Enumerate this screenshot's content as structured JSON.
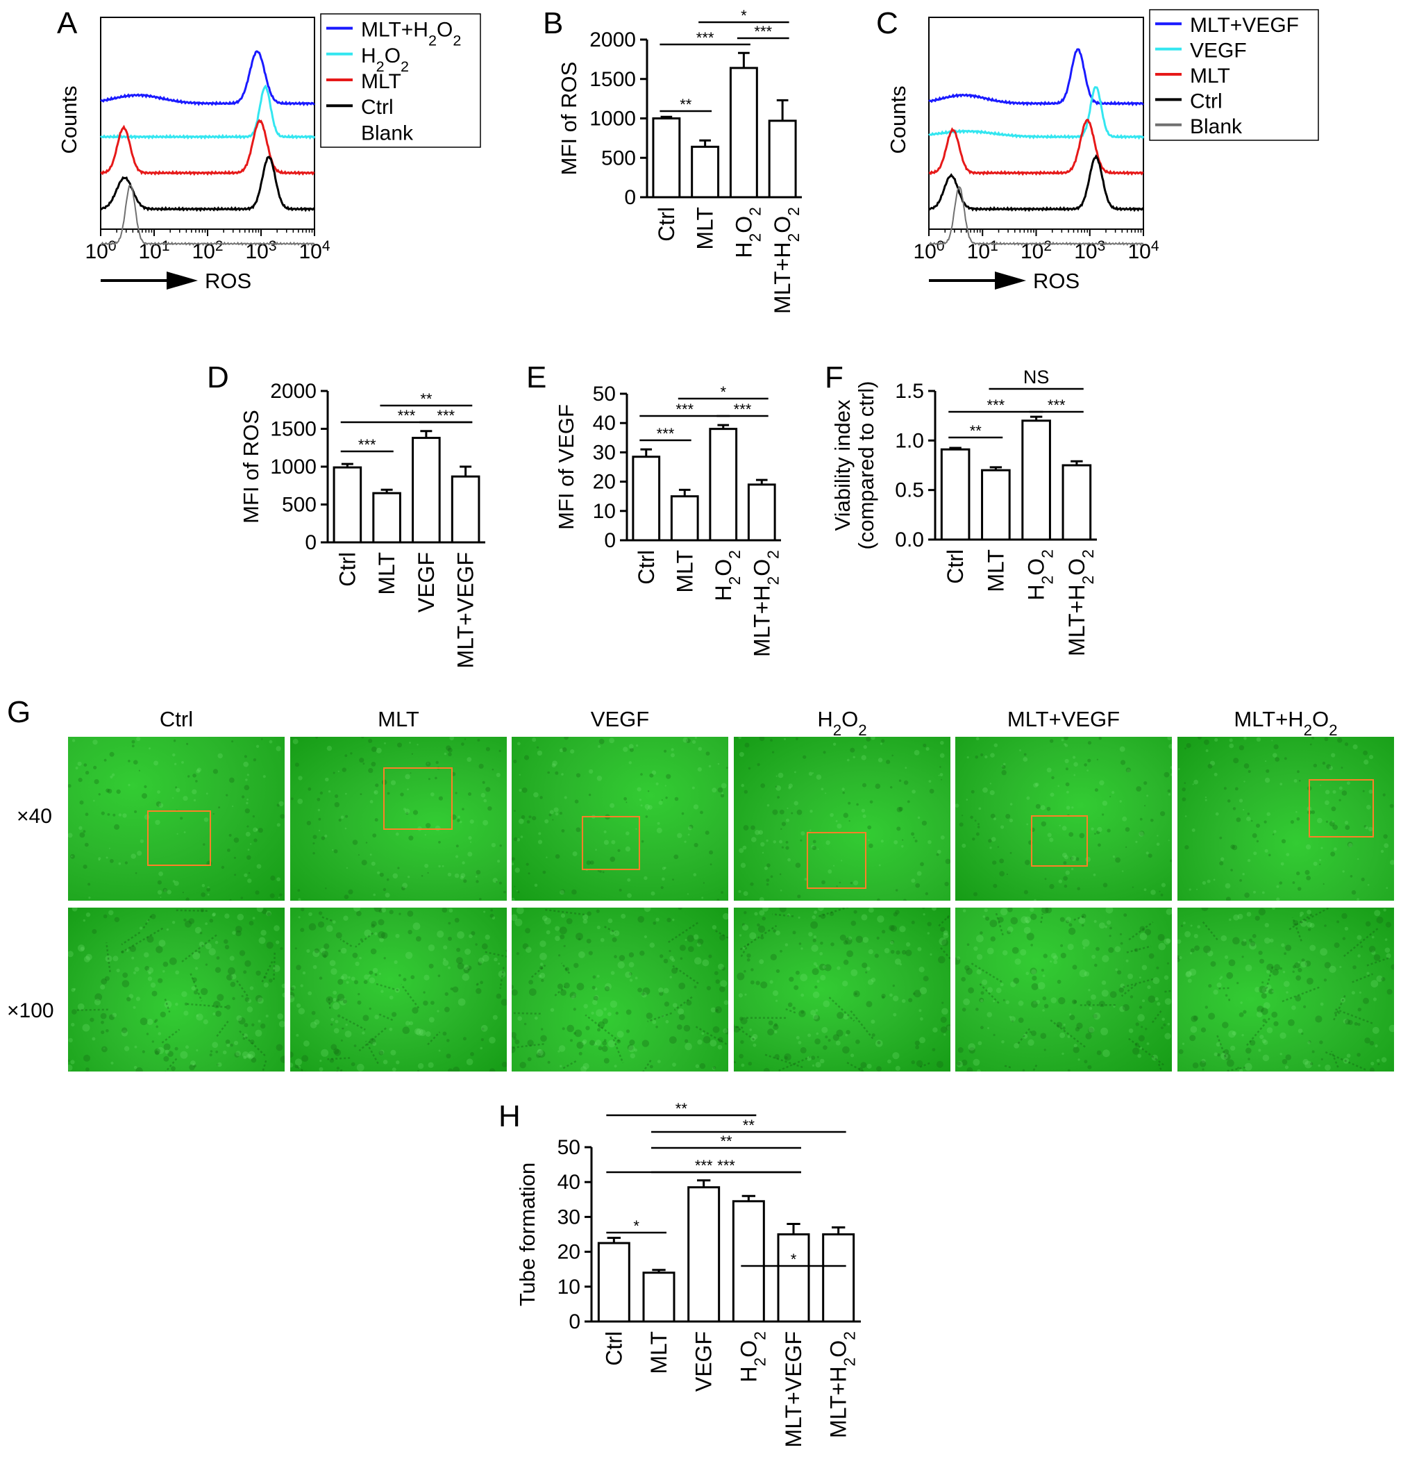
{
  "colors": {
    "blue": "#1a1aff",
    "cyan": "#33e6f0",
    "red": "#e61919",
    "black": "#000000",
    "gray": "#707070",
    "box": "#ff7f27",
    "green_dark": "#169c16",
    "green_light": "#33cc33"
  },
  "chart_data": [
    {
      "panel": "A",
      "type": "line",
      "title": "",
      "xlabel": "ROS",
      "ylabel": "Counts",
      "xscale": "log",
      "xlim": [
        1,
        10000
      ],
      "xticks": [
        {
          "base": "10",
          "exp": "0"
        },
        {
          "base": "10",
          "exp": "1"
        },
        {
          "base": "10",
          "exp": "2"
        },
        {
          "base": "10",
          "exp": "3"
        },
        {
          "base": "10",
          "exp": "4"
        }
      ],
      "legend": [
        {
          "parts": [
            {
              "t": "MLT+H"
            },
            {
              "t": "2",
              "sub": true
            },
            {
              "t": "O"
            },
            {
              "t": "2",
              "sub": true
            }
          ],
          "color": "#1a1aff"
        },
        {
          "parts": [
            {
              "t": "H"
            },
            {
              "t": "2",
              "sub": true
            },
            {
              "t": "O"
            },
            {
              "t": "2",
              "sub": true
            }
          ],
          "color": "#33e6f0"
        },
        {
          "parts": [
            {
              "t": "MLT"
            }
          ],
          "color": "#e61919"
        },
        {
          "parts": [
            {
              "t": "Ctrl"
            }
          ],
          "color": "#000000"
        },
        {
          "parts": [
            {
              "t": "Blank"
            }
          ],
          "color": "#707070"
        }
      ],
      "series": [
        {
          "key": "MLT+H2O2",
          "color": "#1a1aff",
          "peaks": [
            {
              "x": 5.0,
              "h": 0.12,
              "w": 0.45
            },
            {
              "x": 850,
              "h": 0.75,
              "w": 0.14
            }
          ]
        },
        {
          "key": "H2O2",
          "color": "#33e6f0",
          "peaks": [
            {
              "x": 1200,
              "h": 0.72,
              "w": 0.1
            }
          ]
        },
        {
          "key": "MLT",
          "color": "#e61919",
          "peaks": [
            {
              "x": 2.7,
              "h": 0.65,
              "w": 0.12
            },
            {
              "x": 950,
              "h": 0.75,
              "w": 0.13
            }
          ]
        },
        {
          "key": "Ctrl",
          "color": "#000000",
          "peaks": [
            {
              "x": 2.8,
              "h": 0.45,
              "w": 0.15
            },
            {
              "x": 1400,
              "h": 0.75,
              "w": 0.12
            }
          ]
        },
        {
          "key": "Blank",
          "color": "#707070",
          "peaks": [
            {
              "x": 3.6,
              "h": 0.85,
              "w": 0.09
            }
          ]
        }
      ]
    },
    {
      "panel": "B",
      "type": "bar",
      "title": "",
      "ylabel": "MFI of ROS",
      "ylim": [
        0,
        2000
      ],
      "yticks": [
        0,
        500,
        1000,
        1500,
        2000
      ],
      "categories": [
        {
          "parts": [
            {
              "t": "Ctrl"
            }
          ]
        },
        {
          "parts": [
            {
              "t": "MLT"
            }
          ]
        },
        {
          "parts": [
            {
              "t": "H"
            },
            {
              "t": "2",
              "sub": true
            },
            {
              "t": "O"
            },
            {
              "t": "2",
              "sub": true
            }
          ]
        },
        {
          "parts": [
            {
              "t": "MLT+H"
            },
            {
              "t": "2",
              "sub": true
            },
            {
              "t": "O"
            },
            {
              "t": "2",
              "sub": true
            }
          ]
        }
      ],
      "values": [
        1000,
        640,
        1640,
        970
      ],
      "errors": [
        20,
        80,
        190,
        260
      ],
      "significance": [
        {
          "from": 0,
          "to": 1,
          "label": "**"
        },
        {
          "from": 0,
          "to": 2,
          "label": "***"
        },
        {
          "from": 2,
          "to": 3,
          "label": "***"
        },
        {
          "from": 1,
          "to": 3,
          "label": "*"
        }
      ]
    },
    {
      "panel": "C",
      "type": "line",
      "title": "",
      "xlabel": "ROS",
      "ylabel": "Counts",
      "xscale": "log",
      "xlim": [
        1,
        10000
      ],
      "xticks": [
        {
          "base": "10",
          "exp": "0"
        },
        {
          "base": "10",
          "exp": "1"
        },
        {
          "base": "10",
          "exp": "2"
        },
        {
          "base": "10",
          "exp": "3"
        },
        {
          "base": "10",
          "exp": "4"
        }
      ],
      "legend": [
        {
          "parts": [
            {
              "t": "MLT+VEGF"
            }
          ],
          "color": "#1a1aff"
        },
        {
          "parts": [
            {
              "t": "VEGF"
            }
          ],
          "color": "#33e6f0"
        },
        {
          "parts": [
            {
              "t": "MLT"
            }
          ],
          "color": "#e61919"
        },
        {
          "parts": [
            {
              "t": "Ctrl"
            }
          ],
          "color": "#000000"
        },
        {
          "parts": [
            {
              "t": "Blank"
            }
          ],
          "color": "#707070"
        }
      ],
      "series": [
        {
          "key": "MLT+VEGF",
          "color": "#1a1aff",
          "peaks": [
            {
              "x": 4.5,
              "h": 0.12,
              "w": 0.4
            },
            {
              "x": 600,
              "h": 0.78,
              "w": 0.12
            }
          ]
        },
        {
          "key": "VEGF",
          "color": "#33e6f0",
          "peaks": [
            {
              "x": 5.0,
              "h": 0.08,
              "w": 0.5
            },
            {
              "x": 1300,
              "h": 0.72,
              "w": 0.1
            }
          ]
        },
        {
          "key": "MLT",
          "color": "#e61919",
          "peaks": [
            {
              "x": 2.8,
              "h": 0.62,
              "w": 0.12
            },
            {
              "x": 900,
              "h": 0.76,
              "w": 0.13
            }
          ]
        },
        {
          "key": "Ctrl",
          "color": "#000000",
          "peaks": [
            {
              "x": 2.6,
              "h": 0.48,
              "w": 0.13
            },
            {
              "x": 1300,
              "h": 0.75,
              "w": 0.12
            }
          ]
        },
        {
          "key": "Blank",
          "color": "#707070",
          "peaks": [
            {
              "x": 3.7,
              "h": 0.82,
              "w": 0.09
            }
          ]
        }
      ]
    },
    {
      "panel": "D",
      "type": "bar",
      "title": "",
      "ylabel": "MFI of ROS",
      "ylim": [
        0,
        2000
      ],
      "yticks": [
        0,
        500,
        1000,
        1500,
        2000
      ],
      "categories": [
        {
          "parts": [
            {
              "t": "Ctrl"
            }
          ]
        },
        {
          "parts": [
            {
              "t": "MLT"
            }
          ]
        },
        {
          "parts": [
            {
              "t": "VEGF"
            }
          ]
        },
        {
          "parts": [
            {
              "t": "MLT+VEGF"
            }
          ]
        }
      ],
      "values": [
        990,
        650,
        1380,
        870
      ],
      "errors": [
        45,
        45,
        90,
        130
      ],
      "significance": [
        {
          "from": 0,
          "to": 1,
          "label": "***"
        },
        {
          "from": 0,
          "to": 3,
          "label": "***"
        },
        {
          "from": 2,
          "to": 3,
          "label": "***"
        },
        {
          "from": 1,
          "to": 3,
          "label": "**"
        }
      ]
    },
    {
      "panel": "E",
      "type": "bar",
      "title": "",
      "ylabel": "MFI of VEGF",
      "ylim": [
        0,
        50
      ],
      "yticks": [
        0,
        10,
        20,
        30,
        40,
        50
      ],
      "categories": [
        {
          "parts": [
            {
              "t": "Ctrl"
            }
          ]
        },
        {
          "parts": [
            {
              "t": "MLT"
            }
          ]
        },
        {
          "parts": [
            {
              "t": "H"
            },
            {
              "t": "2",
              "sub": true
            },
            {
              "t": "O"
            },
            {
              "t": "2",
              "sub": true
            }
          ]
        },
        {
          "parts": [
            {
              "t": "MLT+H"
            },
            {
              "t": "2",
              "sub": true
            },
            {
              "t": "O"
            },
            {
              "t": "2",
              "sub": true
            }
          ]
        }
      ],
      "values": [
        28.5,
        15,
        38,
        19
      ],
      "errors": [
        2.5,
        2.2,
        1.3,
        1.6
      ],
      "significance": [
        {
          "from": 0,
          "to": 1,
          "label": "***"
        },
        {
          "from": 0,
          "to": 2,
          "label": "***"
        },
        {
          "from": 2,
          "to": 3,
          "label": "***"
        },
        {
          "from": 1,
          "to": 3,
          "label": "*"
        }
      ]
    },
    {
      "panel": "F",
      "type": "bar",
      "title": "",
      "ylabel_lines": [
        "Viability index",
        "(compared to ctrl)"
      ],
      "ylim": [
        0,
        1.5
      ],
      "yticks": [
        "0.0",
        "0.5",
        "1.0",
        "1.5"
      ],
      "categories": [
        {
          "parts": [
            {
              "t": "Ctrl"
            }
          ]
        },
        {
          "parts": [
            {
              "t": "MLT"
            }
          ]
        },
        {
          "parts": [
            {
              "t": "H"
            },
            {
              "t": "2",
              "sub": true
            },
            {
              "t": "O"
            },
            {
              "t": "2",
              "sub": true
            }
          ]
        },
        {
          "parts": [
            {
              "t": "MLT+H"
            },
            {
              "t": "2",
              "sub": true
            },
            {
              "t": "O"
            },
            {
              "t": "2",
              "sub": true
            }
          ]
        }
      ],
      "values": [
        0.91,
        0.7,
        1.2,
        0.75
      ],
      "errors": [
        0.015,
        0.03,
        0.04,
        0.04
      ],
      "significance": [
        {
          "from": 0,
          "to": 1,
          "label": "**"
        },
        {
          "from": 0,
          "to": 2,
          "label": "***"
        },
        {
          "from": 2,
          "to": 3,
          "label": "***"
        },
        {
          "from": 1,
          "to": 3,
          "label": "NS"
        }
      ]
    },
    {
      "panel": "H",
      "type": "bar",
      "title": "",
      "ylabel": "Tube formation",
      "ylim": [
        0,
        50
      ],
      "yticks": [
        0,
        10,
        20,
        30,
        40,
        50
      ],
      "categories": [
        {
          "parts": [
            {
              "t": "Ctrl"
            }
          ]
        },
        {
          "parts": [
            {
              "t": "MLT"
            }
          ]
        },
        {
          "parts": [
            {
              "t": "VEGF"
            }
          ]
        },
        {
          "parts": [
            {
              "t": "H"
            },
            {
              "t": "2",
              "sub": true
            },
            {
              "t": "O"
            },
            {
              "t": "2",
              "sub": true
            }
          ]
        },
        {
          "parts": [
            {
              "t": "MLT+VEGF"
            }
          ]
        },
        {
          "parts": [
            {
              "t": "MLT+H"
            },
            {
              "t": "2",
              "sub": true
            },
            {
              "t": "O"
            },
            {
              "t": "2",
              "sub": true
            }
          ]
        }
      ],
      "values": [
        22.5,
        14,
        38.5,
        34.5,
        25,
        25
      ],
      "errors": [
        1.5,
        0.8,
        2,
        1.5,
        3,
        2
      ],
      "significance": [
        {
          "from": 0,
          "to": 1,
          "label": "*"
        },
        {
          "from": 3,
          "to": 5,
          "label": "*"
        },
        {
          "from": 0,
          "to": 4,
          "label": "***"
        },
        {
          "from": 1,
          "to": 4,
          "label": "***"
        },
        {
          "from": 1,
          "to": 4,
          "label": "**"
        },
        {
          "from": 1,
          "to": 5,
          "label": "**"
        },
        {
          "from": 0,
          "to": 3,
          "label": "**"
        }
      ]
    }
  ],
  "microscopy": {
    "panel": "G",
    "columns": [
      {
        "parts": [
          {
            "t": "Ctrl"
          }
        ]
      },
      {
        "parts": [
          {
            "t": "MLT"
          }
        ]
      },
      {
        "parts": [
          {
            "t": "VEGF"
          }
        ]
      },
      {
        "parts": [
          {
            "t": "H"
          },
          {
            "t": "2",
            "sub": true
          },
          {
            "t": "O"
          },
          {
            "t": "2",
            "sub": true
          }
        ]
      },
      {
        "parts": [
          {
            "t": "MLT+VEGF"
          }
        ]
      },
      {
        "parts": [
          {
            "t": "MLT+H"
          },
          {
            "t": "2",
            "sub": true
          },
          {
            "t": "O"
          },
          {
            "t": "2",
            "sub": true
          }
        ]
      }
    ],
    "rows": [
      "×40",
      "×100"
    ]
  }
}
